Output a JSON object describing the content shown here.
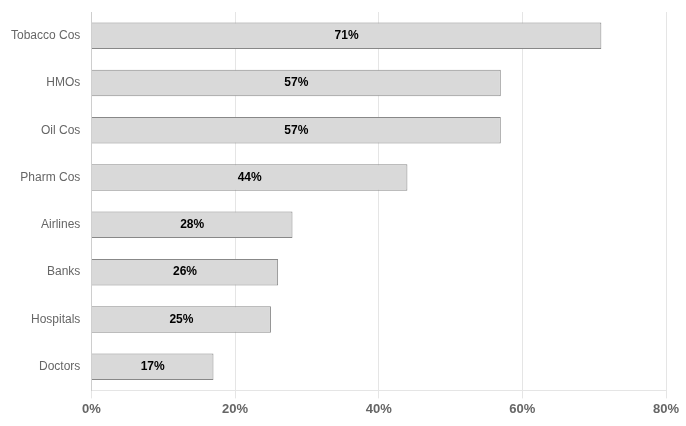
{
  "chart_data": {
    "type": "bar",
    "orientation": "horizontal",
    "categories": [
      "Doctors",
      "Hospitals",
      "Banks",
      "Airlines",
      "Pharm Cos",
      "Oil Cos",
      "HMOs",
      "Tobacco Cos"
    ],
    "values": [
      17,
      25,
      26,
      28,
      44,
      57,
      57,
      71
    ],
    "value_labels": [
      "17%",
      "25%",
      "26%",
      "28%",
      "44%",
      "57%",
      "57%",
      "71%"
    ],
    "data_labels": true,
    "color": "#d9d9d9",
    "xlim": [
      0,
      80
    ],
    "xticks": [
      {
        "value": 0,
        "label": "0%"
      },
      {
        "value": 20,
        "label": "20%"
      },
      {
        "value": 40,
        "label": "40%"
      },
      {
        "value": 60,
        "label": "60%"
      },
      {
        "value": 80,
        "label": "80%"
      }
    ],
    "grid": true
  }
}
